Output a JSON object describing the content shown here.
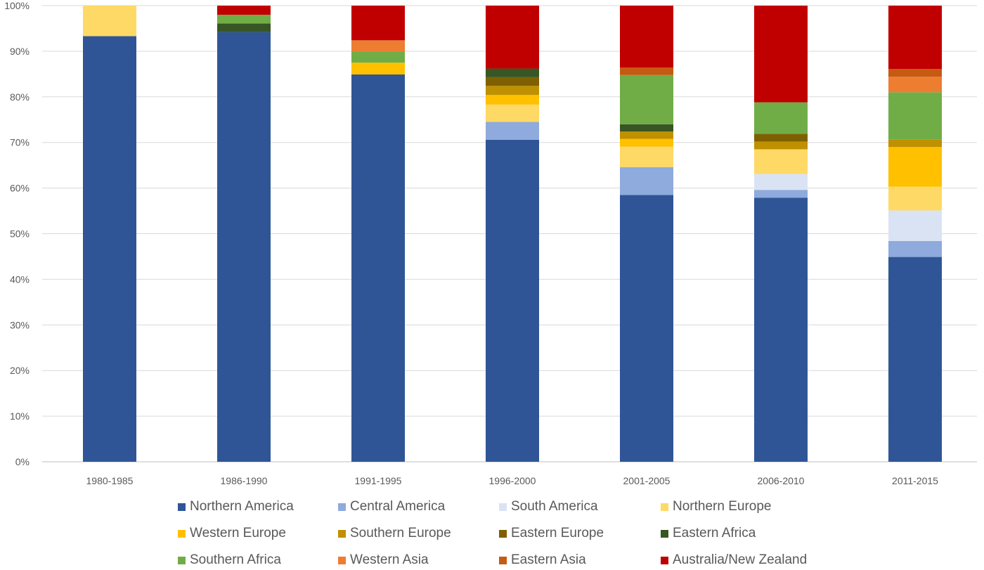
{
  "chart_data": {
    "type": "bar",
    "stacked": true,
    "percent": true,
    "title": "",
    "xlabel": "",
    "ylabel": "",
    "ylim": [
      0,
      100
    ],
    "yticks": [
      "0%",
      "10%",
      "20%",
      "30%",
      "40%",
      "50%",
      "60%",
      "70%",
      "80%",
      "90%",
      "100%"
    ],
    "grid": true,
    "legend_position": "bottom",
    "categories": [
      "1980-1985",
      "1986-1990",
      "1991-1995",
      "1996-2000",
      "2001-2005",
      "2006-2010",
      "2011-2015"
    ],
    "series": [
      {
        "name": "Northern America",
        "color": "#2F5597",
        "values": [
          93.3,
          94.2,
          84.9,
          70.6,
          58.5,
          57.9,
          44.9
        ]
      },
      {
        "name": "Central America",
        "color": "#8FAADC",
        "values": [
          0,
          0,
          0,
          3.9,
          6.1,
          1.7,
          3.5
        ]
      },
      {
        "name": "South America",
        "color": "#DAE3F3",
        "values": [
          0,
          0,
          0,
          0,
          0,
          3.5,
          6.7
        ]
      },
      {
        "name": "Northern Europe",
        "color": "#FFD966",
        "values": [
          6.7,
          0,
          0,
          3.8,
          4.5,
          5.4,
          5.2
        ]
      },
      {
        "name": "Western Europe",
        "color": "#FFC000",
        "values": [
          0,
          0,
          2.6,
          2.1,
          1.7,
          0,
          8.7
        ]
      },
      {
        "name": "Southern Europe",
        "color": "#BF9000",
        "values": [
          0,
          0,
          0,
          2.0,
          1.6,
          1.7,
          1.7
        ]
      },
      {
        "name": "Eastern Europe",
        "color": "#7F6000",
        "values": [
          0,
          0,
          0,
          1.9,
          0,
          1.7,
          0
        ]
      },
      {
        "name": "Eastern Africa",
        "color": "#375623",
        "values": [
          0,
          1.9,
          0,
          1.9,
          1.6,
          0,
          0
        ]
      },
      {
        "name": "Southern Africa",
        "color": "#70AD47",
        "values": [
          0,
          1.9,
          2.4,
          0,
          10.8,
          6.9,
          10.3
        ]
      },
      {
        "name": "Western Asia",
        "color": "#ED7D31",
        "values": [
          0,
          0,
          2.5,
          0,
          0,
          0,
          3.4
        ]
      },
      {
        "name": "Eastern Asia",
        "color": "#C55A11",
        "values": [
          0,
          0,
          0,
          0,
          1.6,
          0,
          1.7
        ]
      },
      {
        "name": "Australia/New Zealand",
        "color": "#C00000",
        "values": [
          0,
          2.0,
          7.6,
          13.8,
          13.6,
          21.2,
          13.9
        ]
      }
    ]
  }
}
